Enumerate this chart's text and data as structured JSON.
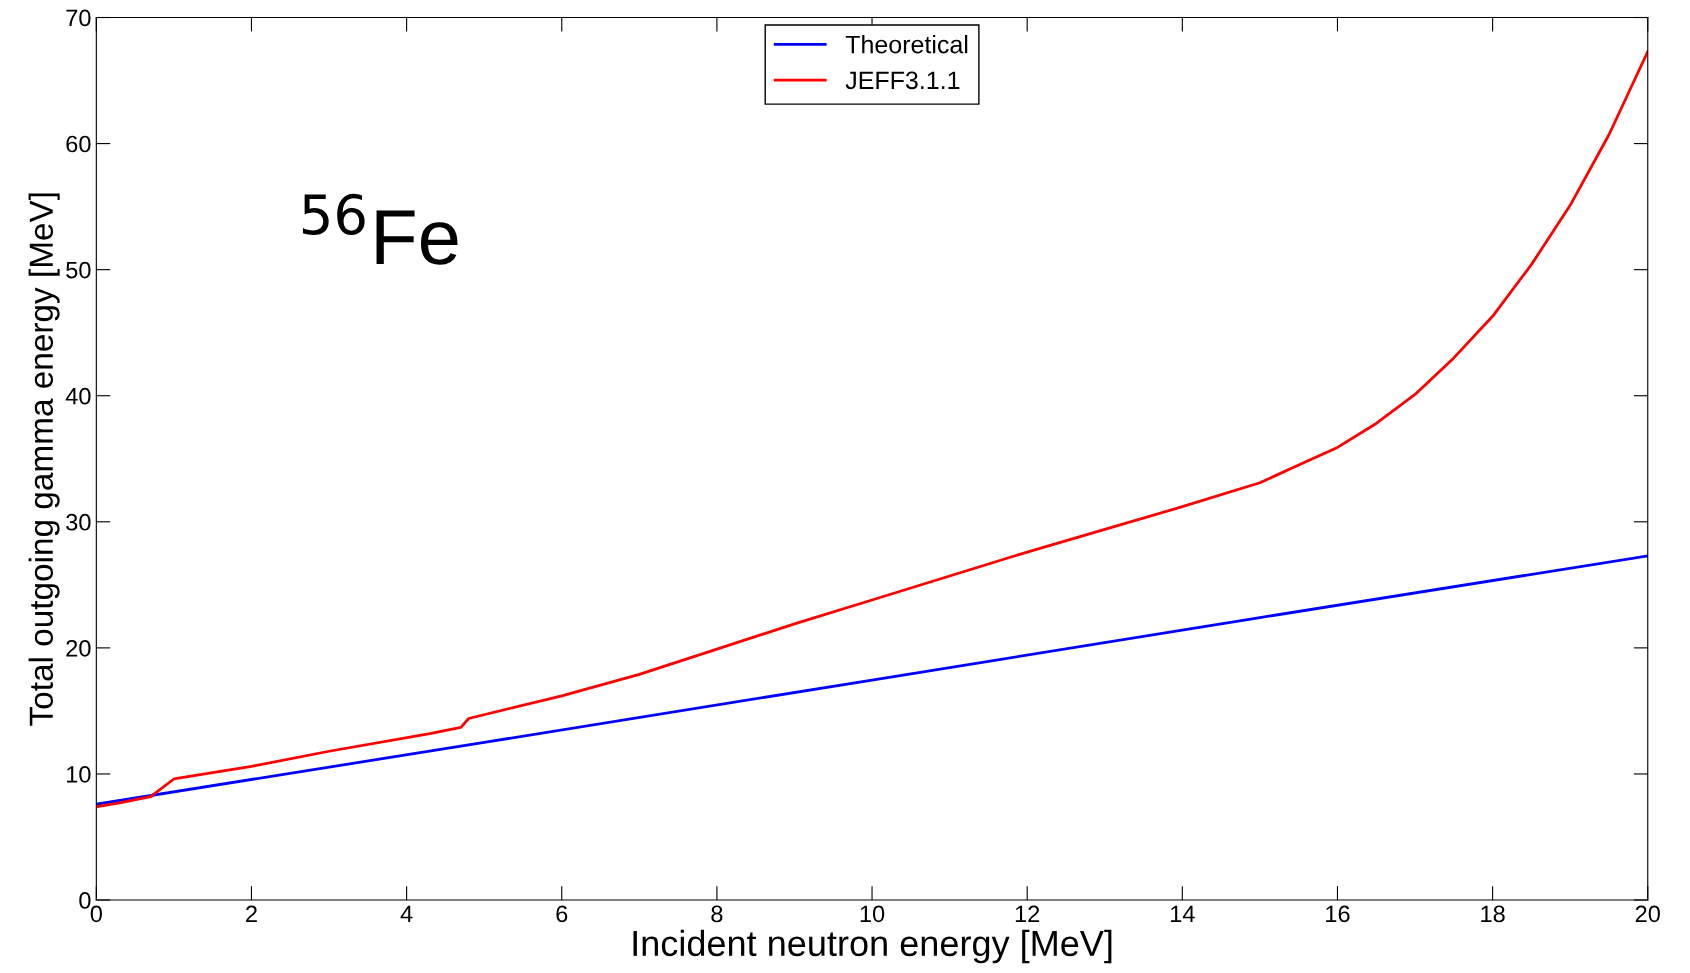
{
  "chart_data": {
    "type": "line",
    "xlabel": "Incident neutron energy [MeV]",
    "ylabel": "Total outgoing gamma energy [MeV]",
    "xlim": [
      0,
      20
    ],
    "ylim": [
      0,
      70
    ],
    "xticks": [
      0,
      2,
      4,
      6,
      8,
      10,
      12,
      14,
      16,
      18,
      20
    ],
    "yticks": [
      0,
      10,
      20,
      30,
      40,
      50,
      60,
      70
    ],
    "grid": false,
    "legend": "top",
    "line_style": "solid",
    "marker": "none",
    "annotations": [
      "$^{56}$Fe"
    ],
    "series": [
      {
        "name": "Theoretical",
        "color": "#0000ff",
        "x": [
          0,
          5,
          10,
          15,
          20
        ],
        "values": [
          7.6,
          12.5,
          17.45,
          22.4,
          27.3
        ]
      },
      {
        "name": "JEFF3.1.1",
        "color": "#ff0000",
        "x": [
          0,
          0.3,
          0.7,
          1.0,
          2,
          3,
          4.3,
          4.7,
          4.8,
          6,
          7,
          8,
          9,
          10,
          11,
          12,
          13,
          14,
          15,
          15.5,
          16,
          16.5,
          17,
          17.5,
          18,
          18.5,
          19,
          19.5,
          20
        ],
        "values": [
          7.4,
          7.7,
          8.2,
          9.6,
          10.6,
          11.8,
          13.2,
          13.7,
          14.4,
          16.2,
          17.9,
          19.9,
          21.9,
          23.8,
          25.7,
          27.6,
          29.4,
          31.2,
          33.1,
          34.5,
          35.9,
          37.8,
          40.1,
          43.0,
          46.3,
          50.4,
          55.1,
          60.7,
          67.3
        ]
      }
    ]
  }
}
